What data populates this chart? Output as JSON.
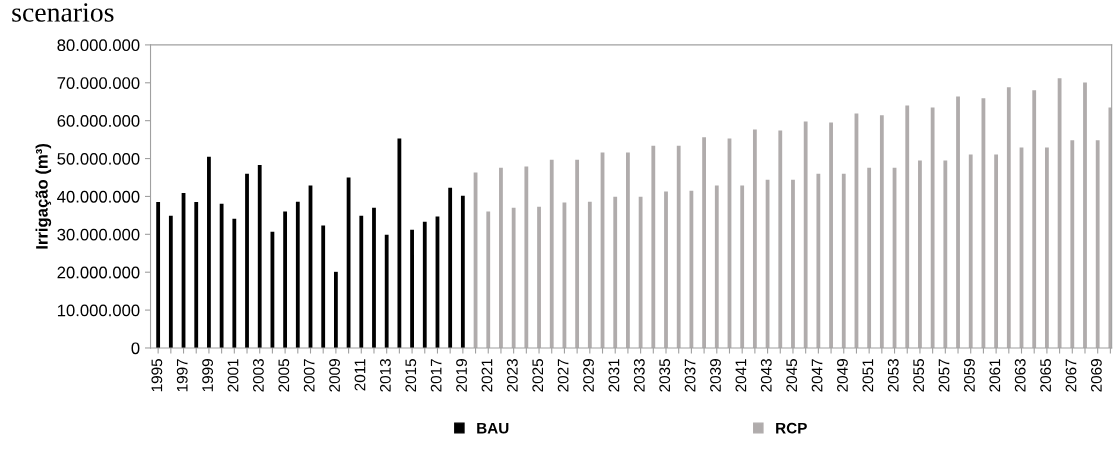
{
  "chart_data": {
    "type": "bar",
    "title": "scenarios",
    "ylabel": "Irrigação (m³)",
    "categories": [
      "1995",
      null,
      "1997",
      null,
      "1999",
      null,
      "2001",
      null,
      "2003",
      null,
      "2005",
      null,
      "2007",
      null,
      "2009",
      null,
      "2011",
      null,
      "2013",
      null,
      "2015",
      null,
      "2017",
      null,
      "2019",
      null,
      "2021",
      null,
      "2023",
      null,
      "2025",
      null,
      "2027",
      null,
      "2029",
      null,
      "2031",
      null,
      "2033",
      null,
      "2035",
      null,
      "2037",
      null,
      "2039",
      null,
      "2041",
      null,
      "2043",
      null,
      "2045",
      null,
      "2047",
      null,
      "2049",
      null,
      "2051",
      null,
      "2053",
      null,
      "2055",
      null,
      "2057",
      null,
      "2059",
      null,
      "2061",
      null,
      "2063",
      null,
      "2065",
      null,
      "2067",
      null,
      "2069",
      null
    ],
    "series": [
      {
        "name": "BAU",
        "color": "#000000",
        "values": [
          38500000,
          34900000,
          40900000,
          38500000,
          50500000,
          38100000,
          34100000,
          46000000,
          48300000,
          30700000,
          36000000,
          38600000,
          42900000,
          32300000,
          20100000,
          45000000,
          34900000,
          37000000,
          29900000,
          55300000,
          31200000,
          33300000,
          34700000,
          42300000,
          40200000,
          null,
          null,
          null,
          null,
          null,
          null,
          null,
          null,
          null,
          null,
          null,
          null,
          null,
          null,
          null,
          null,
          null,
          null,
          null,
          null,
          null,
          null,
          null,
          null,
          null,
          null,
          null,
          null,
          null,
          null,
          null,
          null,
          null,
          null,
          null,
          null,
          null,
          null,
          null,
          null,
          null,
          null,
          null,
          null,
          null,
          null,
          null,
          null,
          null,
          null,
          null
        ]
      },
      {
        "name": "RCP",
        "color": "#b0acac",
        "values": [
          null,
          null,
          null,
          null,
          null,
          null,
          null,
          null,
          null,
          null,
          null,
          null,
          null,
          null,
          null,
          null,
          null,
          null,
          null,
          null,
          null,
          null,
          null,
          null,
          null,
          46300000,
          36000000,
          47600000,
          37000000,
          47900000,
          37300000,
          49700000,
          38400000,
          49700000,
          38600000,
          51600000,
          39900000,
          51600000,
          39900000,
          53400000,
          41300000,
          53400000,
          41500000,
          55600000,
          42900000,
          55300000,
          42900000,
          57700000,
          44400000,
          57400000,
          44400000,
          59800000,
          46000000,
          59500000,
          46000000,
          61900000,
          47600000,
          61400000,
          47600000,
          64000000,
          49500000,
          63500000,
          49500000,
          66400000,
          51100000,
          65900000,
          51100000,
          68800000,
          52900000,
          68000000,
          52900000,
          71200000,
          54800000,
          70100000,
          54800000,
          63500000
        ]
      }
    ],
    "ylim": [
      0,
      80000000
    ],
    "yticks": [
      {
        "value": 0,
        "label": "0"
      },
      {
        "value": 10000000,
        "label": "10.000.000"
      },
      {
        "value": 20000000,
        "label": "20.000.000"
      },
      {
        "value": 30000000,
        "label": "30.000.000"
      },
      {
        "value": 40000000,
        "label": "40.000.000"
      },
      {
        "value": 50000000,
        "label": "50.000.000"
      },
      {
        "value": 60000000,
        "label": "60.000.000"
      },
      {
        "value": 70000000,
        "label": "70.000.000"
      },
      {
        "value": 80000000,
        "label": "80.000.000"
      }
    ],
    "grid": false,
    "legend": "bottom"
  }
}
